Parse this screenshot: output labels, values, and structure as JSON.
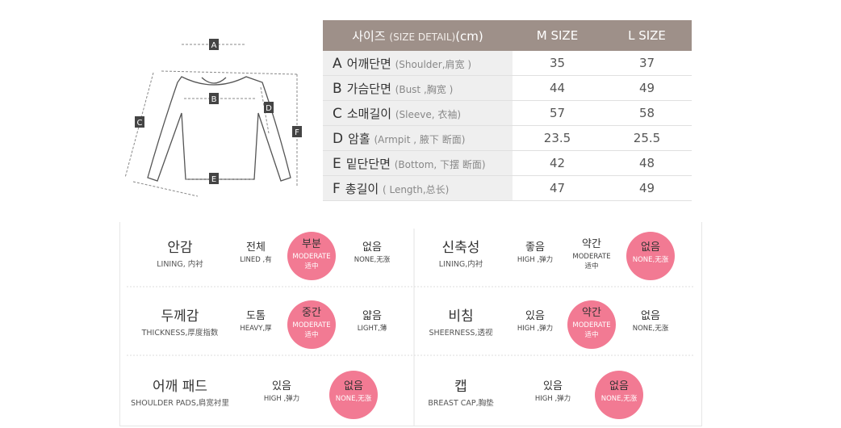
{
  "diagram": {
    "labels": [
      "A",
      "B",
      "C",
      "D",
      "E",
      "F"
    ]
  },
  "size_table": {
    "header": {
      "title": "사이즈",
      "subtitle": "(SIZE DETAIL)",
      "unit": "(cm)",
      "columns": [
        "M SIZE",
        "L SIZE"
      ]
    },
    "rows": [
      {
        "letter": "A",
        "name": "어깨단면",
        "detail": "(Shoulder,肩宽 )",
        "values": [
          35,
          37
        ]
      },
      {
        "letter": "B",
        "name": "가슴단면",
        "detail": "(Bust ,胸宽 )",
        "values": [
          44,
          49
        ]
      },
      {
        "letter": "C",
        "name": "소매길이",
        "detail": "(Sleeve, 衣袖)",
        "values": [
          57,
          58
        ]
      },
      {
        "letter": "D",
        "name": "암홀",
        "detail": "(Armpit , 腋下 断面)",
        "values": [
          23.5,
          25.5
        ]
      },
      {
        "letter": "E",
        "name": "밑단단면",
        "detail": "(Bottom, 下摆 断面)",
        "values": [
          42,
          48
        ]
      },
      {
        "letter": "F",
        "name": "총길이",
        "detail": "( Length,总长)",
        "values": [
          47,
          49
        ]
      }
    ]
  },
  "attributes": [
    {
      "title": "안감",
      "subtitle": "LINING, 内衬",
      "options": [
        {
          "label": "전체",
          "lines": [
            "LINED ,有"
          ],
          "selected": false
        },
        {
          "label": "부분",
          "lines": [
            "MODERATE",
            "适中"
          ],
          "selected": true
        },
        {
          "label": "없음",
          "lines": [
            "NONE,无涨"
          ],
          "selected": false
        }
      ]
    },
    {
      "title": "신축성",
      "subtitle": "LINING,内衬",
      "options": [
        {
          "label": "좋음",
          "lines": [
            "HIGH ,弹力"
          ],
          "selected": false
        },
        {
          "label": "약간",
          "lines": [
            "MODERATE",
            "适中"
          ],
          "selected": false
        },
        {
          "label": "없음",
          "lines": [
            "NONE,无涨"
          ],
          "selected": true
        }
      ]
    },
    {
      "title": "두께감",
      "subtitle": "THICKNESS,厚度指数",
      "options": [
        {
          "label": "도톰",
          "lines": [
            "HEAVY,厚"
          ],
          "selected": false
        },
        {
          "label": "중간",
          "lines": [
            "MODERATE",
            "适中"
          ],
          "selected": true
        },
        {
          "label": "얇음",
          "lines": [
            "LIGHT,薄"
          ],
          "selected": false
        }
      ]
    },
    {
      "title": "비침",
      "subtitle": "SHEERNESS,透视",
      "options": [
        {
          "label": "있음",
          "lines": [
            "HIGH ,弹力"
          ],
          "selected": false
        },
        {
          "label": "약간",
          "lines": [
            "MODERATE",
            "适中"
          ],
          "selected": true
        },
        {
          "label": "없음",
          "lines": [
            "NONE,无涨"
          ],
          "selected": false
        }
      ]
    },
    {
      "title": "어깨 패드",
      "subtitle": "SHOULDER PADS,肩宽衬里",
      "options": [
        {
          "label": "있음",
          "lines": [
            "HIGH ,弹力"
          ],
          "selected": false
        },
        {
          "label": "없음",
          "lines": [
            "NONE,无涨"
          ],
          "selected": true
        }
      ]
    },
    {
      "title": "캡",
      "subtitle": "BREAST CAP,胸垫",
      "options": [
        {
          "label": "있음",
          "lines": [
            "HIGH ,弹力"
          ],
          "selected": false
        },
        {
          "label": "없음",
          "lines": [
            "NONE,无涨"
          ],
          "selected": true
        }
      ]
    }
  ]
}
